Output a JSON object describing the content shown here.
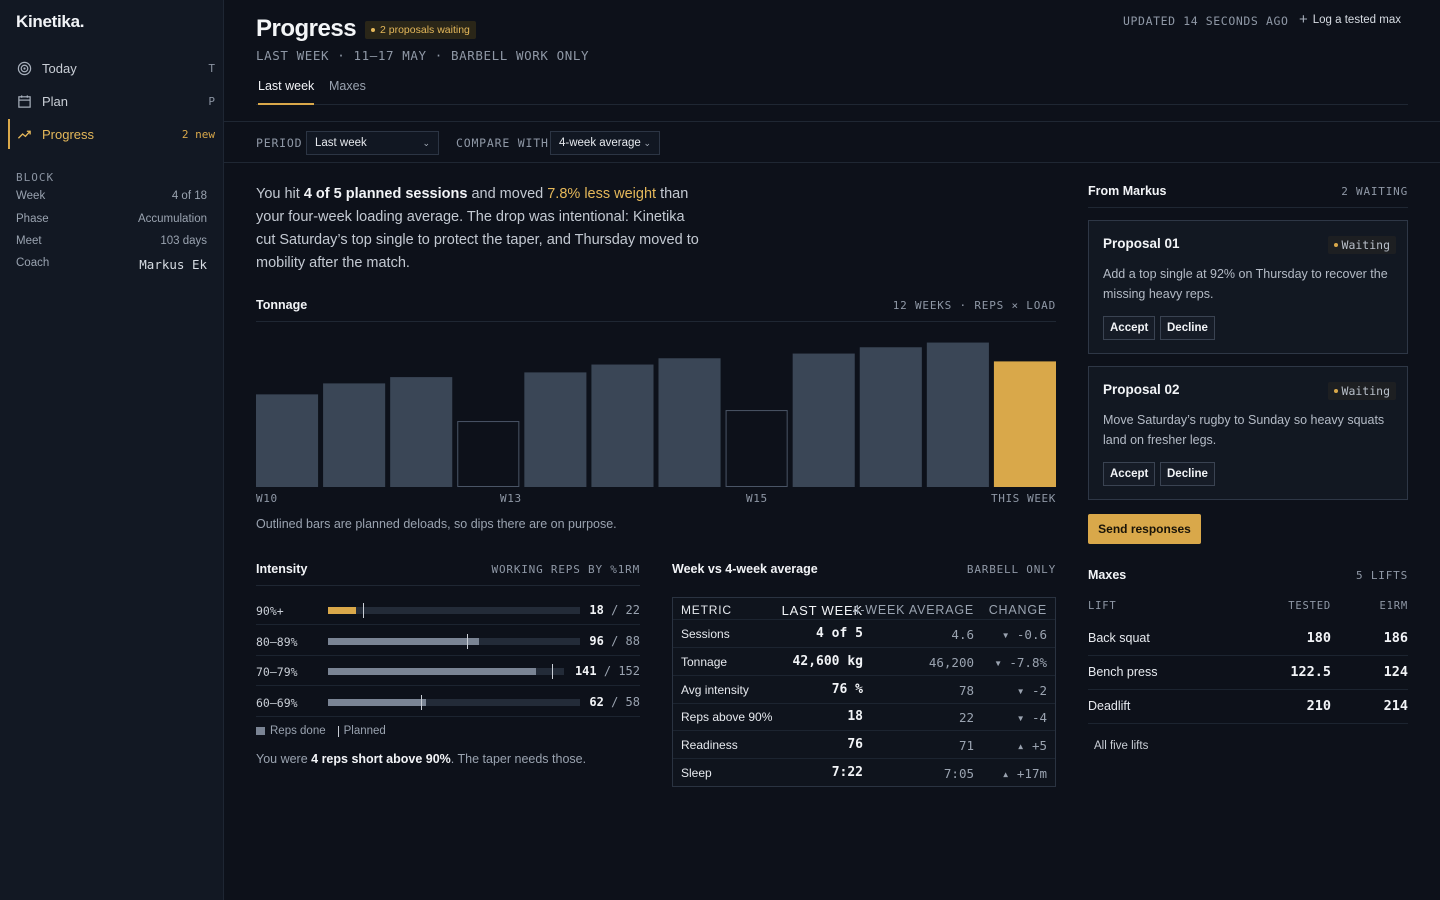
{
  "sidebar": {
    "brand": "Kinetika.",
    "nav": [
      {
        "label": "Today",
        "key": "T",
        "icon": "target-icon"
      },
      {
        "label": "Plan",
        "key": "P",
        "icon": "calendar-icon"
      },
      {
        "label": "Progress",
        "key": "2 new",
        "icon": "trend-up-icon"
      }
    ],
    "block_heading": "BLOCK",
    "block": [
      {
        "label": "Week",
        "value": "4 of 18"
      },
      {
        "label": "Phase",
        "value": "Accumulation"
      },
      {
        "label": "Meet",
        "value": "103 days"
      },
      {
        "label": "Coach",
        "value": "Markus Ek"
      }
    ]
  },
  "header": {
    "title": "Progress",
    "badge": "2 proposals waiting",
    "subtitle": "LAST WEEK · 11–17 MAY · BARBELL WORK ONLY",
    "tabs": [
      "Last week",
      "Maxes"
    ]
  },
  "filters": {
    "period_label": "PERIOD",
    "period_value": "Last week",
    "compare_label": "COMPARE WITH",
    "compare_value": "4-week average",
    "updated": "UPDATED 14 SECONDS AGO",
    "log_max": "Log a tested max"
  },
  "summary": {
    "p1": "You hit ",
    "b1": "4 of 5 planned sessions",
    "p2": " and moved ",
    "h1": "7.8% less weight",
    "p3": " than your four-week loading average. The drop was intentional: Kinetika cut Saturday’s top single to protect the taper, and Thursday moved to mobility after the match."
  },
  "tonnage": {
    "title": "Tonnage",
    "meta": "12 WEEKS · REPS × LOAD",
    "ticks": [
      "W10",
      "W13",
      "W15",
      "THIS WEEK"
    ],
    "note": "Outlined bars are planned deloads, so dips there are on purpose."
  },
  "chart_data": {
    "type": "bar",
    "title": "Tonnage",
    "values": [
      0.59,
      0.66,
      0.7,
      0.42,
      0.73,
      0.78,
      0.82,
      0.49,
      0.85,
      0.89,
      0.92,
      0.8
    ],
    "deload": [
      false,
      false,
      false,
      true,
      false,
      false,
      false,
      true,
      false,
      false,
      false,
      false
    ],
    "current": [
      false,
      false,
      false,
      false,
      false,
      false,
      false,
      false,
      false,
      false,
      false,
      true
    ],
    "colors": {
      "bar": "#3a4656",
      "current": "#d9a84a",
      "outline": "#4a5566"
    }
  },
  "intensity": {
    "title": "Intensity",
    "meta": "WORKING REPS BY %1RM",
    "rows": [
      {
        "label": "90%+",
        "done": "18",
        "planned": "22",
        "fill": 0.11,
        "mark": 0.14,
        "gold": true
      },
      {
        "label": "80–89%",
        "done": "96",
        "planned": "88",
        "fill": 0.6,
        "mark": 0.55,
        "gold": false
      },
      {
        "label": "70–79%",
        "done": "141",
        "planned": "152",
        "fill": 0.88,
        "mark": 0.95,
        "gold": false
      },
      {
        "label": "60–69%",
        "done": "62",
        "planned": "58",
        "fill": 0.39,
        "mark": 0.37,
        "gold": false
      }
    ],
    "legend_done": "Reps done",
    "legend_planned": "Planned",
    "note_pre": "You were ",
    "note_bold": "4 reps short above 90%",
    "note_post": ". The taper needs those."
  },
  "compare": {
    "title": "Week vs 4-week average",
    "meta": "BARBELL ONLY",
    "headers": [
      "METRIC",
      "LAST WEEK",
      "4-WEEK AVERAGE",
      "CHANGE"
    ],
    "rows": [
      {
        "metric": "Sessions",
        "last": "4 of 5",
        "avg": "4.6",
        "change": "▾ -0.6"
      },
      {
        "metric": "Tonnage",
        "last": "42,600 kg",
        "avg": "46,200",
        "change": "▾ -7.8%"
      },
      {
        "metric": "Avg intensity",
        "last": "76 %",
        "avg": "78",
        "change": "▾ -2"
      },
      {
        "metric": "Reps above 90%",
        "last": "18",
        "avg": "22",
        "change": "▾ -4"
      },
      {
        "metric": "Readiness",
        "last": "76",
        "avg": "71",
        "change": "▴ +5"
      },
      {
        "metric": "Sleep",
        "last": "7:22",
        "avg": "7:05",
        "change": "▴ +17m"
      }
    ]
  },
  "proposals": {
    "title": "From Markus",
    "meta": "2 WAITING",
    "items": [
      {
        "title": "Proposal 01",
        "status": "Waiting",
        "desc": "Add a top single at 92% on Thursday to recover the missing heavy reps.",
        "accept": "Accept",
        "decline": "Decline"
      },
      {
        "title": "Proposal 02",
        "status": "Waiting",
        "desc": "Move Saturday’s rugby to Sunday so heavy squats land on fresher legs.",
        "accept": "Accept",
        "decline": "Decline"
      }
    ],
    "send": "Send responses"
  },
  "maxes": {
    "title": "Maxes",
    "meta": "5 LIFTS",
    "headers": [
      "LIFT",
      "TESTED",
      "E1RM"
    ],
    "rows": [
      {
        "lift": "Back squat",
        "tested": "180",
        "e1rm": "186"
      },
      {
        "lift": "Bench press",
        "tested": "122.5",
        "e1rm": "124"
      },
      {
        "lift": "Deadlift",
        "tested": "210",
        "e1rm": "214"
      }
    ],
    "all": "All five lifts"
  }
}
